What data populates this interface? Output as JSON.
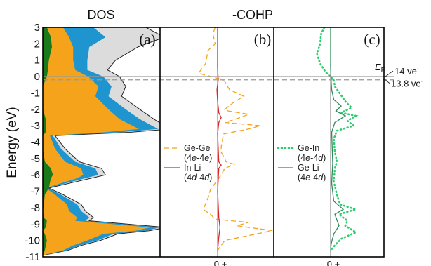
{
  "chart_data": {
    "type": "area",
    "y_axis": {
      "label": "Energy (eV)",
      "ylim": [
        -11,
        3
      ],
      "ticks": [
        "3",
        "2",
        "1",
        "0",
        "-1",
        "-2",
        "-3",
        "-4",
        "-5",
        "-6",
        "-7",
        "-8",
        "-9",
        "-10",
        "-11"
      ]
    },
    "reference_lines": [
      {
        "energy": 0.0,
        "label": "14 ve",
        "superscript": "-",
        "color": "#9a9a9a",
        "style": "solid"
      },
      {
        "energy": -0.2,
        "label": "13.8 ve",
        "superscript": "-",
        "color": "#9a9a9a",
        "style": "dashed"
      }
    ],
    "fermi_label": {
      "main": "E",
      "sub": "F"
    },
    "panels": [
      {
        "id": "a",
        "label": "(a)",
        "header": "DOS",
        "series": [
          {
            "color": "#1a7a1a",
            "x": [
              0.4,
              0.8,
              0.9,
              0.6,
              0.5,
              0.4,
              0,
              0,
              0,
              0.3,
              0.3,
              0.3,
              0,
              0,
              0.2,
              0.8,
              1.0,
              0.8,
              0.6,
              0.2,
              0.1,
              0,
              0.1,
              0.4,
              0.3,
              0,
              0.2,
              0.4,
              0.3,
              0.2,
              0
            ],
            "energy": [
              3,
              2.4,
              1.8,
              1,
              0.4,
              0,
              -0.6,
              -1.2,
              -2,
              -2.6,
              -3.2,
              -3.4,
              -3.6,
              -4.4,
              -5.2,
              -5.6,
              -6,
              -6.2,
              -6.8,
              -7.2,
              -7.8,
              -8.2,
              -8.6,
              -8.8,
              -9.2,
              -9.4,
              -9.6,
              -10,
              -10.3,
              -10.6,
              -10.9
            ]
          },
          {
            "color": "#f5a31b",
            "x": [
              2.0,
              2.6,
              3.0,
              3.0,
              3.2,
              4.5,
              5.5,
              5.2,
              6.5,
              7.6,
              9.5,
              6.0,
              0.7,
              1.2,
              2.2,
              3.8,
              4.0,
              3.4,
              0.3,
              1.2,
              2.4,
              2.6,
              3.4,
              3.2,
              10.6,
              9.2,
              6.0,
              4.4,
              3.0,
              2.0,
              0
            ],
            "energy": [
              3,
              2.4,
              1.8,
              1,
              0.4,
              0,
              -0.6,
              -1.2,
              -2,
              -2.6,
              -3.2,
              -3.4,
              -3.6,
              -4.4,
              -5.2,
              -5.6,
              -6,
              -6.2,
              -6.8,
              -7.2,
              -7.8,
              -8.2,
              -8.6,
              -8.8,
              -9.2,
              -9.4,
              -9.6,
              -10,
              -10.3,
              -10.6,
              -10.9
            ]
          },
          {
            "color": "#1f95d0",
            "x": [
              5.0,
              6.2,
              4.6,
              4.4,
              4.4,
              6.0,
              6.8,
              6.5,
              8.2,
              9.6,
              11.4,
              7.6,
              1.0,
              1.8,
              3.2,
              5.2,
              5.5,
              4.2,
              0.5,
              1.8,
              3.4,
              3.8,
              4.6,
              4.2,
              11.6,
              10.2,
              7.0,
              5.4,
              3.6,
              2.4,
              0
            ],
            "energy": [
              3,
              2.4,
              1.8,
              1,
              0.4,
              0,
              -0.6,
              -1.2,
              -2,
              -2.6,
              -3.2,
              -3.4,
              -3.6,
              -4.4,
              -5.2,
              -5.6,
              -6,
              -6.2,
              -6.8,
              -7.2,
              -7.8,
              -8.2,
              -8.6,
              -8.8,
              -9.2,
              -9.4,
              -9.6,
              -10,
              -10.3,
              -10.6,
              -10.9
            ]
          },
          {
            "color": "#dcdcdc",
            "x": [
              10.2,
              12.0,
              9.4,
              7.2,
              6.4,
              7.6,
              8.2,
              7.8,
              9.6,
              11.0,
              12.6,
              8.6,
              1.2,
              2.2,
              3.6,
              5.8,
              6.2,
              4.8,
              0.6,
              2.0,
              3.8,
              4.2,
              5.0,
              4.6,
              12.2,
              10.6,
              7.4,
              5.7,
              3.8,
              2.5,
              0
            ],
            "energy": [
              3,
              2.4,
              1.8,
              1,
              0.4,
              0,
              -0.6,
              -1.2,
              -2,
              -2.6,
              -3.2,
              -3.4,
              -3.6,
              -4.4,
              -5.2,
              -5.6,
              -6,
              -6.2,
              -6.8,
              -7.2,
              -7.8,
              -8.2,
              -8.6,
              -8.8,
              -9.2,
              -9.4,
              -9.6,
              -10,
              -10.3,
              -10.6,
              -10.9
            ]
          }
        ]
      },
      {
        "id": "b",
        "label": "(b)",
        "header": "-COHP",
        "xtick_text": "- 0 +",
        "legend": [
          {
            "name": "Ge-Ge",
            "orbital_a": "4",
            "orb_a": "e",
            "orbital_b": "4",
            "orb_b": "e",
            "color": "#f5a31b",
            "style": "dashed"
          },
          {
            "name": "In-Li",
            "orbital_a": "4",
            "orb_a": "d",
            "orbital_b": "4",
            "orb_b": "d",
            "color": "#d62728",
            "style": "solid"
          }
        ],
        "series": [
          {
            "name": "Ge-Ge",
            "color": "#f5a31b",
            "style": "dashed",
            "x": [
              -0.2,
              -0.4,
              -0.2,
              -0.8,
              -1.0,
              -1.6,
              -0.8,
              0.2,
              0.6,
              1.0,
              2.2,
              1.3,
              0.6,
              0.9,
              2.6,
              1.9,
              0.6,
              3.6,
              2.6,
              0.5,
              0.3,
              0.3,
              0.6,
              0.7,
              1.4,
              0.6,
              0.3,
              -0.6,
              -0.8,
              -1.2,
              -0.6,
              -0.2,
              2.6,
              1.6,
              4.6,
              0.6,
              0
            ],
            "energy": [
              3,
              2.6,
              2,
              1.6,
              0.8,
              0.2,
              0.05,
              -0.15,
              -0.3,
              -0.8,
              -1.2,
              -1.6,
              -2,
              -2.1,
              -2.3,
              -2.5,
              -2.8,
              -3.0,
              -3.2,
              -3.5,
              -4.3,
              -4.6,
              -5.0,
              -5.2,
              -5.35,
              -5.6,
              -6.0,
              -6.9,
              -7.4,
              -8.1,
              -8.4,
              -8.7,
              -8.9,
              -9.1,
              -9.4,
              -10.0,
              -10.6
            ]
          },
          {
            "name": "In-Li",
            "color": "#d62728",
            "style": "solid",
            "x": [
              0,
              0,
              0.05,
              -0.05,
              0,
              0.1,
              0.3,
              0.1,
              0,
              0.1,
              0.3,
              0.1,
              0,
              0.1,
              0.2,
              0.1,
              0
            ],
            "energy": [
              3,
              0.5,
              -0.2,
              -0.8,
              -1.5,
              -2.2,
              -2.5,
              -2.8,
              -3.5,
              -5.2,
              -5.4,
              -5.6,
              -7,
              -8.6,
              -9.2,
              -9.8,
              -10.6
            ]
          }
        ]
      },
      {
        "id": "c",
        "label": "(c)",
        "header": "",
        "xtick_text": "- 0 +",
        "legend": [
          {
            "name": "Ge-In",
            "orbital_a": "4",
            "orb_a": "e",
            "orbital_b": "4",
            "orb_b": "d",
            "color": "#2ecc71",
            "style": "dotted"
          },
          {
            "name": "Ge-Li",
            "orbital_a": "4",
            "orb_a": "e",
            "orbital_b": "4",
            "orb_b": "d",
            "color": "#2e8b57",
            "style": "solid"
          }
        ],
        "series": [
          {
            "name": "Ge-In",
            "color": "#2ecc71",
            "style": "dotted",
            "x": [
              -0.6,
              -0.9,
              -1.0,
              -1.3,
              -1.0,
              -0.5,
              -0.2,
              0.3,
              0.4,
              1.5,
              2.0,
              1.0,
              2.4,
              1.6,
              2.2,
              0.6,
              0.3,
              0.4,
              0.6,
              0.4,
              0.3,
              0.6,
              0.9,
              2.4,
              0.8,
              1.6,
              1.4,
              2.4,
              1.0,
              0.4,
              0
            ],
            "energy": [
              3,
              2.6,
              2,
              1.4,
              0.8,
              0.3,
              0.1,
              -0.2,
              -0.6,
              -1.6,
              -1.9,
              -2.2,
              -2.4,
              -2.7,
              -3.0,
              -3.3,
              -3.8,
              -4.6,
              -5.2,
              -5.6,
              -6.4,
              -7.2,
              -7.8,
              -8.1,
              -8.4,
              -8.8,
              -9.1,
              -9.5,
              -9.9,
              -10.3,
              -10.6
            ]
          },
          {
            "name": "Ge-Li",
            "color": "#2e8b57",
            "style": "solid",
            "x": [
              0,
              0,
              0.05,
              0.1,
              0.3,
              1.0,
              0.5,
              1.4,
              0.4,
              0.1,
              0.2,
              0.1,
              0.3,
              1.2,
              0.4,
              0.8,
              0.3,
              0.05,
              0
            ],
            "energy": [
              3,
              0.5,
              -0.3,
              -0.8,
              -1.4,
              -1.8,
              -2.1,
              -2.4,
              -2.8,
              -3.4,
              -5.3,
              -6.5,
              -7.6,
              -8.1,
              -8.4,
              -9.1,
              -9.6,
              -10.2,
              -10.6
            ]
          }
        ]
      }
    ]
  }
}
